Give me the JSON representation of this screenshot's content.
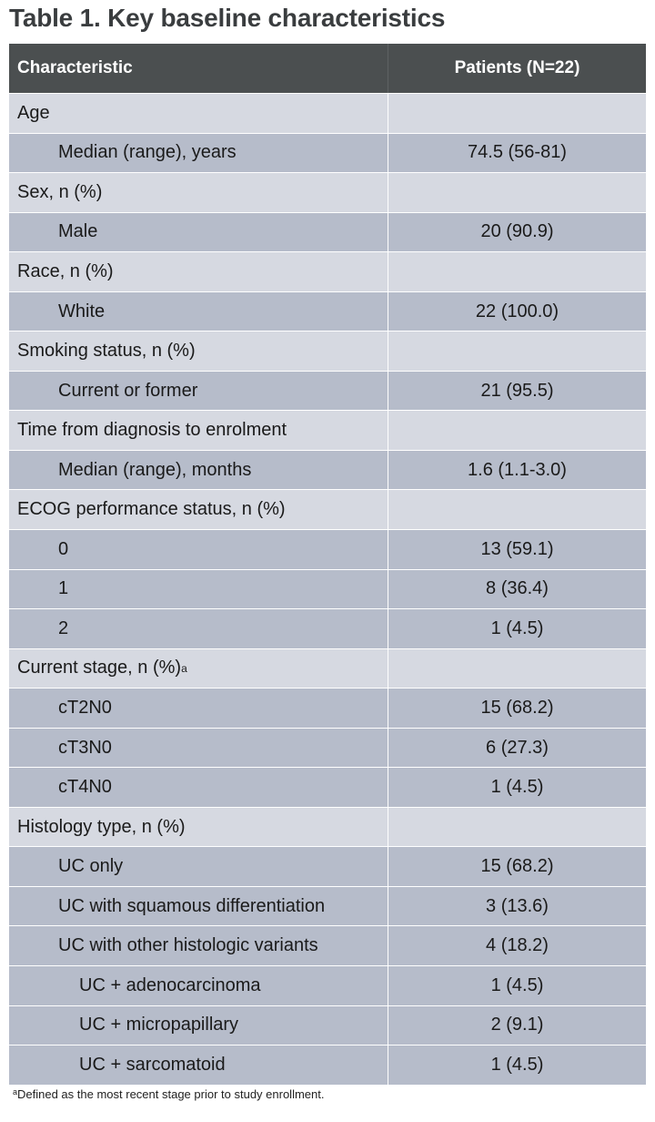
{
  "title": "Table 1. Key baseline characteristics",
  "table": {
    "columns": [
      "Characteristic",
      "Patients (N=22)"
    ],
    "groups": [
      {
        "label": "Age",
        "items": [
          {
            "label": "Median (range), years",
            "value": "74.5 (56-81)"
          }
        ]
      },
      {
        "label": "Sex, n (%)",
        "items": [
          {
            "label": "Male",
            "value": "20 (90.9)"
          }
        ]
      },
      {
        "label": "Race, n (%)",
        "items": [
          {
            "label": "White",
            "value": "22 (100.0)"
          }
        ]
      },
      {
        "label": "Smoking status, n (%)",
        "items": [
          {
            "label": "Current or former",
            "value": "21 (95.5)"
          }
        ]
      },
      {
        "label": "Time from diagnosis to enrolment",
        "items": [
          {
            "label": "Median (range), months",
            "value": "1.6 (1.1-3.0)"
          }
        ]
      },
      {
        "label": "ECOG performance status, n (%)",
        "items": [
          {
            "label": "0",
            "value": "13 (59.1)"
          },
          {
            "label": "1",
            "value": "8 (36.4)"
          },
          {
            "label": "2",
            "value": "1 (4.5)"
          }
        ]
      },
      {
        "label": "Current stage, n (%)",
        "superscript": "a",
        "items": [
          {
            "label": "cT2N0",
            "value": "15 (68.2)"
          },
          {
            "label": "cT3N0",
            "value": "6 (27.3)"
          },
          {
            "label": "cT4N0",
            "value": "1 (4.5)"
          }
        ]
      },
      {
        "label": "Histology type, n (%)",
        "items": [
          {
            "label": "UC only",
            "value": "15 (68.2)"
          },
          {
            "label": "UC with squamous differentiation",
            "value": "3 (13.6)"
          },
          {
            "label": "UC with other histologic variants",
            "value": "4 (18.2)",
            "items": [
              {
                "label": "UC + adenocarcinoma",
                "value": "1 (4.5)"
              },
              {
                "label": "UC + micropapillary",
                "value": "2 (9.1)"
              },
              {
                "label": "UC + sarcomatoid",
                "value": "1 (4.5)"
              }
            ]
          }
        ]
      }
    ]
  },
  "footnote": {
    "marker": "a",
    "text": "Defined as the most recent stage prior to study enrollment."
  }
}
